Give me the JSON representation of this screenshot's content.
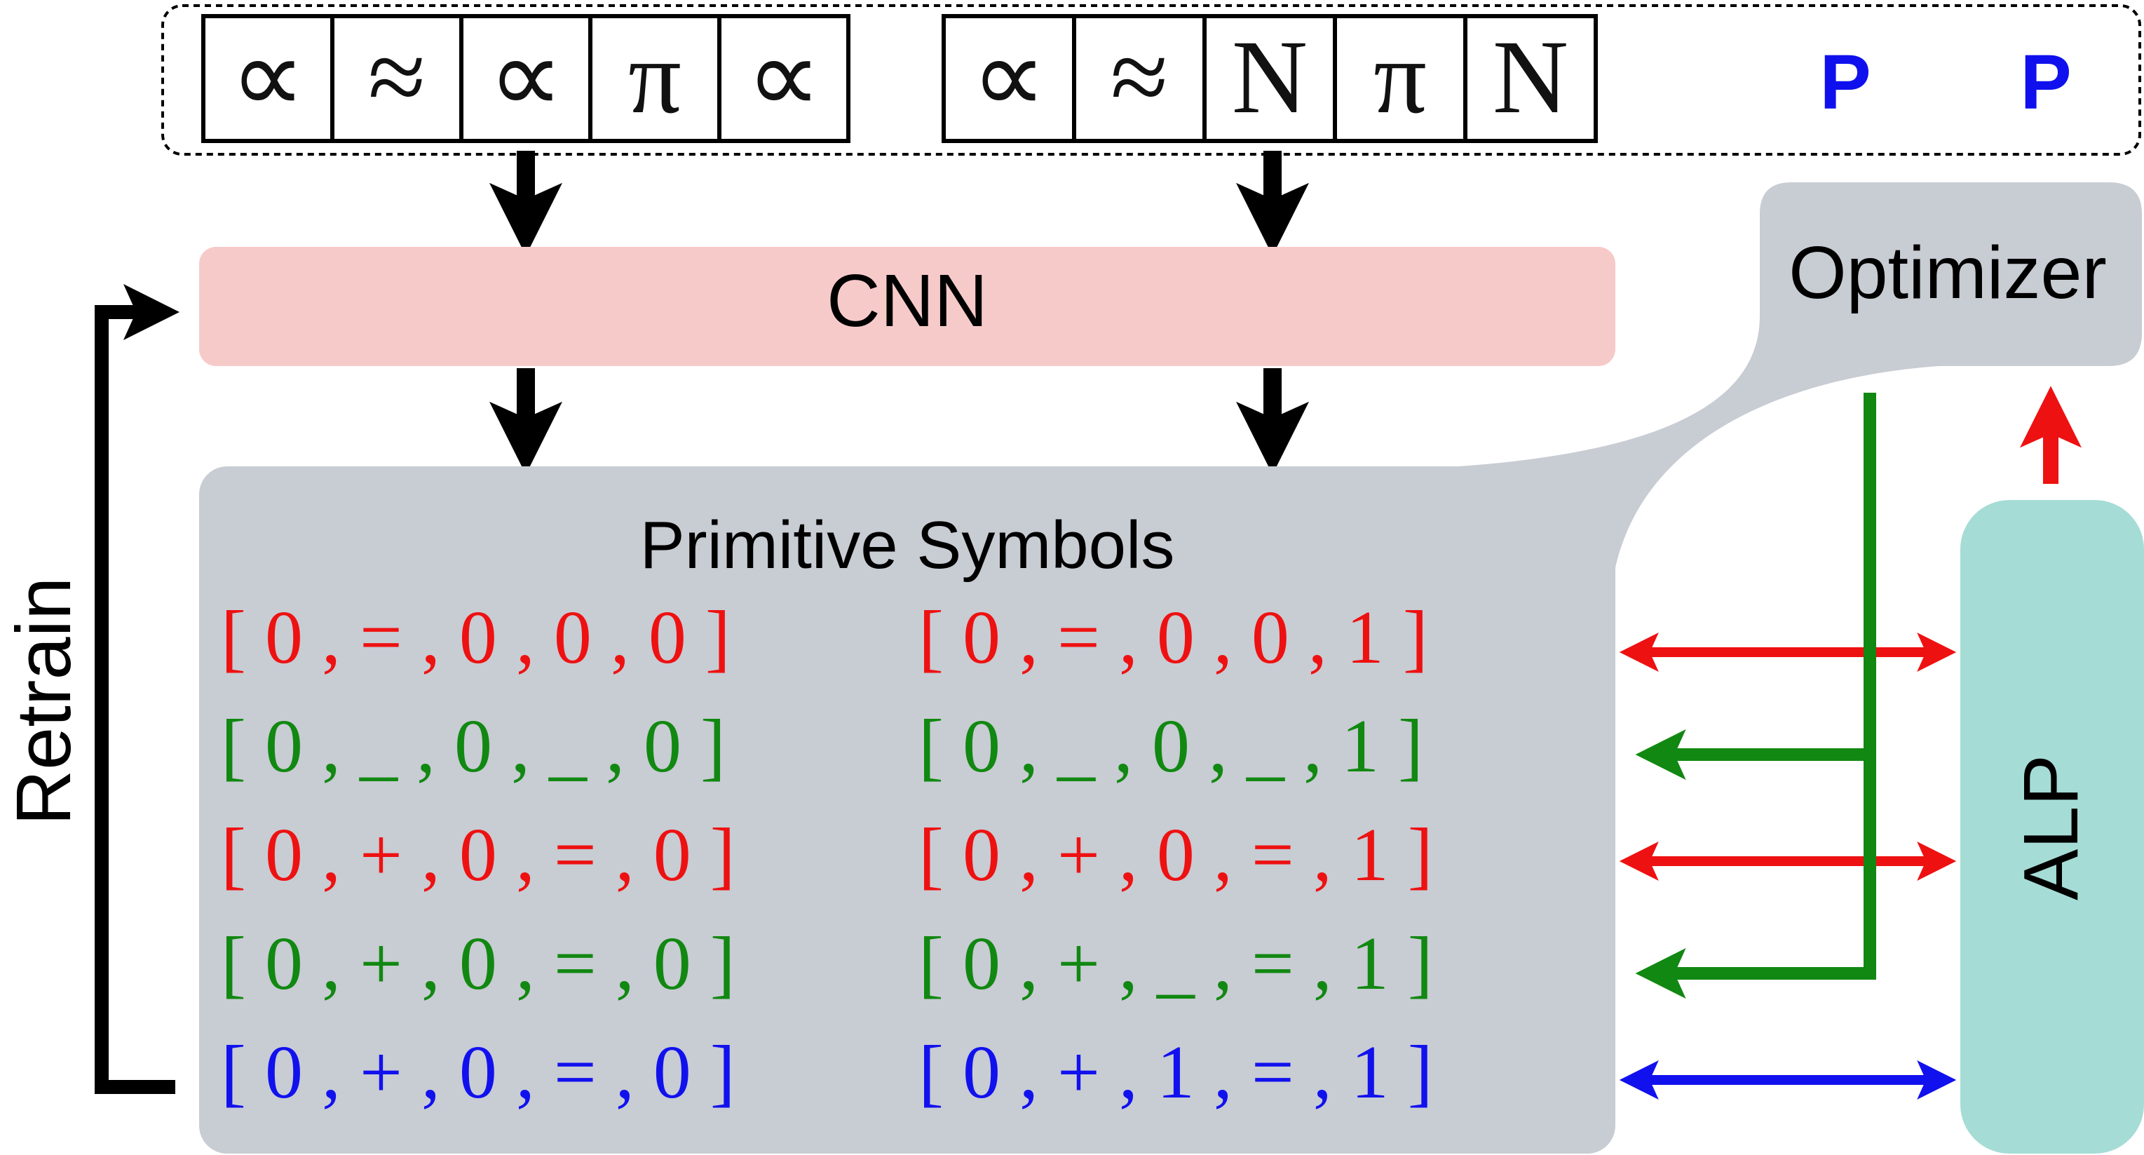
{
  "input_row": {
    "label_p1": "P",
    "label_p2": "P",
    "group_a_symbols": [
      "∝",
      "≈",
      "∝",
      "π",
      "∝"
    ],
    "group_b_symbols": [
      "∝",
      "≈",
      "N",
      "π",
      "N"
    ]
  },
  "cnn": {
    "label": "CNN"
  },
  "optimizer": {
    "label": "Optimizer"
  },
  "alp": {
    "label": "ALP"
  },
  "retrain": {
    "label": "Retrain"
  },
  "primitive_symbols": {
    "title": "Primitive Symbols",
    "rows": [
      {
        "left": "[ 0 , = , 0 , 0 , 0 ]",
        "right": "[ 0 , = , 0 , 0 , 1 ]",
        "color": "#ee1111"
      },
      {
        "left": "[ 0 , _ , 0 , _ , 0 ]",
        "right": "[ 0 , _ , 0 , _ , 1 ]",
        "color": "#118811"
      },
      {
        "left": "[ 0 , + , 0 , = , 0 ]",
        "right": "[ 0 , + , 0 , = , 1 ]",
        "color": "#ee1111"
      },
      {
        "left": "[ 0 , + , 0 , = , 0 ]",
        "right": "[ 0 , + , _ , = , 1 ]",
        "color": "#118811"
      },
      {
        "left": "[ 0 , + , 0 , = , 0 ]",
        "right": "[ 0 , + , 1 , = , 1 ]",
        "color": "#1111ee"
      }
    ]
  },
  "colors": {
    "cnn_fill": "#f7caca",
    "panel_fill": "#c8ccd3",
    "alp_fill": "#a6dcd6",
    "red": "#ee1111",
    "green": "#118811",
    "blue": "#1111ee",
    "p_blue": "#1010ee",
    "black": "#000000"
  }
}
